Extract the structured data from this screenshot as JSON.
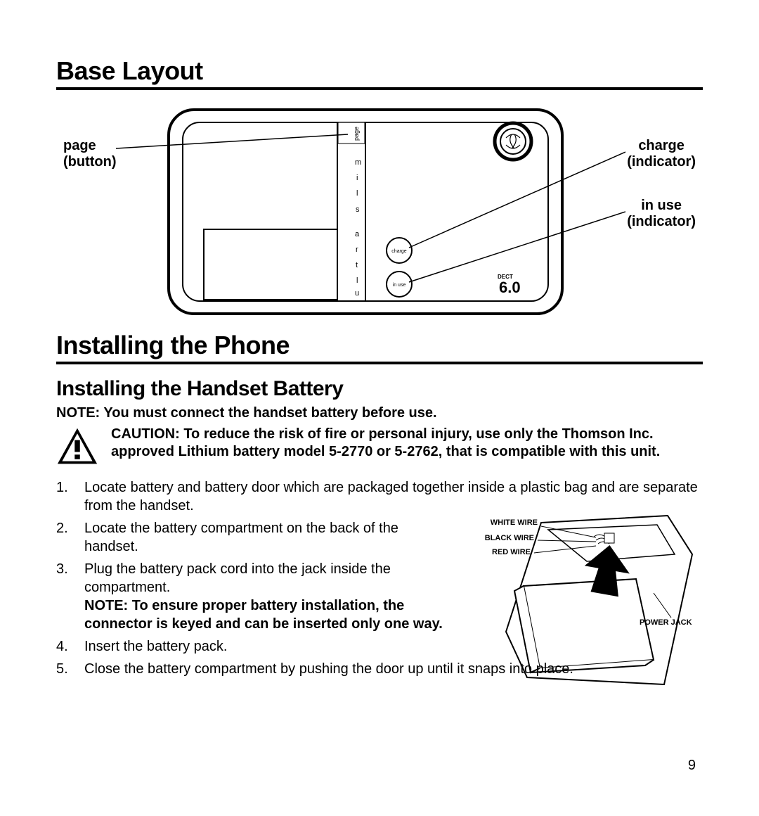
{
  "sections": {
    "base_layout_title": "Base Layout",
    "installing_title": "Installing the Phone",
    "handset_battery_title": "Installing the Handset Battery"
  },
  "base_diagram": {
    "labels": {
      "page_button": "page\n(button)",
      "charge_indicator": "charge\n(indicator)",
      "inuse_indicator": "in use\n(indicator)"
    },
    "internal_text": {
      "page": "page",
      "charge": "charge",
      "inuse": "in use",
      "ultraslim": "ultraslim",
      "dect": "DECT",
      "six": "6.0"
    },
    "stroke_width_outer": 4,
    "stroke_width_inner": 2,
    "corner_radius": 36
  },
  "notes": {
    "connect_before_use": "NOTE: You must connect the handset battery before use.",
    "caution": "CAUTION: To reduce the risk of fire or personal injury, use only the Thomson Inc. approved Lithium battery model 5-2770 or 5-2762, that is compatible with this unit.",
    "connector_keyed": "NOTE: To ensure proper battery installation, the connector is keyed and can be inserted only one way."
  },
  "steps": [
    "Locate battery and battery door which are packaged together inside a plastic bag and are separate from the handset.",
    "Locate the battery compartment on the back of the handset.",
    "Plug the battery pack cord into the jack inside the compartment.",
    "Insert the battery pack.",
    "Close the battery compartment by pushing the door up until it snaps into place."
  ],
  "battery_diagram_labels": {
    "white": "WHITE WIRE",
    "black": "BLACK WIRE",
    "red": "RED WIRE",
    "power": "POWER JACK"
  },
  "page_number": "9",
  "colors": {
    "text": "#000000",
    "bg": "#ffffff"
  }
}
